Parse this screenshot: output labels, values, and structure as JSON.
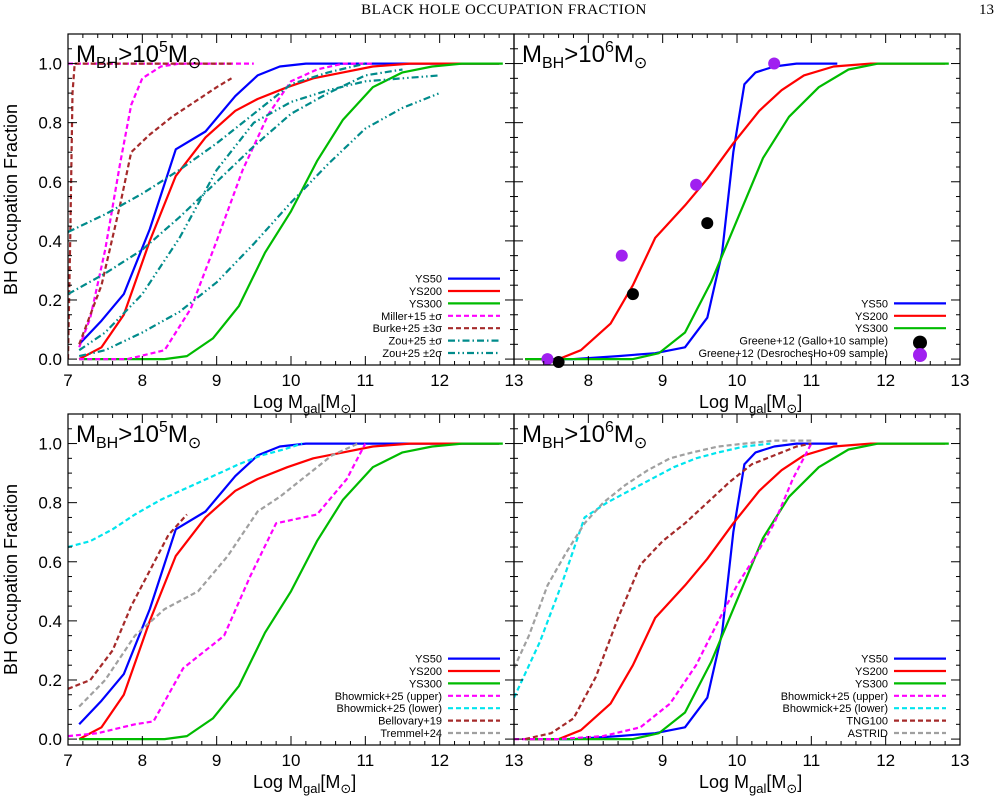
{
  "header": {
    "title": "BLACK HOLE OCCUPATION FRACTION",
    "page_number": "13"
  },
  "colors": {
    "ys50": "#0000ff",
    "ys200": "#ff0000",
    "ys300": "#00bb00",
    "magenta": "#ff00ff",
    "darkred": "#a52a2a",
    "teal": "#008b8b",
    "cyan": "#00e5ee",
    "gray": "#a0a0a0",
    "purple": "#a020f0",
    "black": "#000000"
  },
  "shared_axes": {
    "xlabel_main": "Log M",
    "xlabel_sub": "gal",
    "xlabel_unit": "[M",
    "xlabel_end": "]",
    "ylabel": "BH Occupation Fraction",
    "xlim": [
      7,
      13
    ],
    "ylim": [
      -0.02,
      1.1
    ],
    "xticks": [
      "7",
      "8",
      "9",
      "10",
      "11",
      "12",
      "13"
    ],
    "yticks": [
      "0.0",
      "0.2",
      "0.4",
      "0.6",
      "0.8",
      "1.0"
    ]
  },
  "chart_data": [
    {
      "type": "line",
      "panel_label": {
        "prefix": "M",
        "sub": "BH",
        "mid": ">10",
        "sup": "5",
        "unit": "M"
      },
      "series": [
        {
          "name": "YS50",
          "color": "ys50",
          "dash": "solid",
          "x": [
            7.15,
            7.45,
            7.75,
            8.1,
            8.45,
            8.85,
            9.25,
            9.55,
            9.85,
            10.2,
            10.6,
            11.0,
            11.5,
            12.2,
            12.8
          ],
          "y": [
            0.05,
            0.13,
            0.22,
            0.44,
            0.71,
            0.77,
            0.89,
            0.96,
            0.99,
            1.0,
            1.0,
            1.0,
            1.0,
            1.0,
            1.0
          ]
        },
        {
          "name": "YS200",
          "color": "ys200",
          "dash": "solid",
          "x": [
            7.15,
            7.45,
            7.75,
            8.1,
            8.45,
            8.85,
            9.25,
            9.55,
            9.95,
            10.3,
            10.7,
            11.1,
            11.6,
            12.2,
            12.8
          ],
          "y": [
            0.0,
            0.04,
            0.15,
            0.4,
            0.62,
            0.75,
            0.84,
            0.88,
            0.92,
            0.95,
            0.97,
            0.99,
            1.0,
            1.0,
            1.0
          ]
        },
        {
          "name": "YS300",
          "color": "ys300",
          "dash": "solid",
          "x": [
            7.15,
            7.8,
            8.3,
            8.6,
            8.95,
            9.3,
            9.65,
            10.0,
            10.35,
            10.7,
            11.1,
            11.5,
            11.9,
            12.3,
            12.85
          ],
          "y": [
            0.0,
            0.0,
            0.0,
            0.01,
            0.07,
            0.18,
            0.36,
            0.5,
            0.67,
            0.81,
            0.92,
            0.97,
            0.99,
            1.0,
            1.0
          ]
        },
        {
          "name": "Miller+15 ±σ",
          "color": "magenta",
          "dash": "short",
          "x": [
            7.0,
            7.7,
            8.0,
            8.3,
            8.6,
            8.9,
            9.2,
            9.5
          ],
          "y": [
            1.0,
            1.0,
            1.0,
            1.0,
            1.0,
            1.0,
            1.0,
            1.0
          ]
        },
        {
          "name": "",
          "color": "magenta",
          "dash": "short",
          "x": [
            7.15,
            7.3,
            7.5,
            7.7,
            7.85,
            8.0,
            8.25,
            8.5,
            9.0
          ],
          "y": [
            0.04,
            0.14,
            0.37,
            0.66,
            0.86,
            0.95,
            0.99,
            1.0,
            1.0
          ]
        },
        {
          "name": "",
          "color": "magenta",
          "dash": "short",
          "x": [
            7.15,
            7.8,
            8.3,
            8.65,
            9.0,
            9.35,
            9.7,
            10.0,
            10.35,
            10.7,
            11.1
          ],
          "y": [
            0.0,
            0.0,
            0.03,
            0.17,
            0.4,
            0.64,
            0.83,
            0.94,
            0.98,
            1.0,
            1.0
          ]
        },
        {
          "name": "Burke+25 ±3σ",
          "color": "darkred",
          "dash": "short",
          "x": [
            7.0,
            7.03,
            7.06,
            7.09
          ],
          "y": [
            0.0,
            0.4,
            0.9,
            1.0
          ]
        },
        {
          "name": "",
          "color": "darkred",
          "dash": "short",
          "x": [
            7.09,
            7.6,
            8.2,
            8.8,
            9.2
          ],
          "y": [
            1.0,
            1.0,
            1.0,
            1.0,
            1.0
          ]
        },
        {
          "name": "",
          "color": "darkred",
          "dash": "short",
          "x": [
            7.15,
            7.45,
            7.7,
            7.85,
            8.1,
            8.4,
            8.7,
            9.0,
            9.2
          ],
          "y": [
            0.05,
            0.25,
            0.52,
            0.7,
            0.76,
            0.82,
            0.87,
            0.92,
            0.95
          ]
        },
        {
          "name": "Zou+25 ±σ",
          "color": "teal",
          "dash": "dashdot",
          "x": [
            7.0,
            7.5,
            8.0,
            8.5,
            9.0,
            9.5,
            10.0,
            10.5,
            11.0
          ],
          "y": [
            0.43,
            0.49,
            0.56,
            0.64,
            0.73,
            0.83,
            0.93,
            0.97,
            1.0
          ]
        },
        {
          "name": "",
          "color": "teal",
          "dash": "dashdot",
          "x": [
            7.0,
            7.5,
            8.0,
            8.5,
            9.0,
            9.5,
            10.0,
            10.5,
            11.0,
            11.5
          ],
          "y": [
            0.22,
            0.29,
            0.37,
            0.48,
            0.6,
            0.72,
            0.83,
            0.9,
            0.96,
            0.98
          ]
        },
        {
          "name": "Zou+25 ±2σ",
          "color": "teal",
          "dash": "dashdotdot",
          "x": [
            7.15,
            7.5,
            8.0,
            8.5,
            9.0,
            9.5,
            10.0,
            10.5,
            11.0,
            11.5,
            12.0
          ],
          "y": [
            0.01,
            0.03,
            0.09,
            0.16,
            0.26,
            0.39,
            0.53,
            0.66,
            0.78,
            0.85,
            0.9
          ]
        },
        {
          "name": "",
          "color": "teal",
          "dash": "dashdotdot",
          "x": [
            7.15,
            7.5,
            8.0,
            8.5,
            9.0,
            9.5,
            10.0,
            10.5,
            11.0,
            11.5,
            12.0
          ],
          "y": [
            0.03,
            0.09,
            0.22,
            0.41,
            0.64,
            0.8,
            0.87,
            0.91,
            0.94,
            0.95,
            0.96
          ]
        }
      ]
    },
    {
      "type": "line",
      "panel_label": {
        "prefix": "M",
        "sub": "BH",
        "mid": ">10",
        "sup": "6",
        "unit": "M"
      },
      "series": [
        {
          "name": "YS50",
          "color": "ys50",
          "dash": "solid",
          "x": [
            7.15,
            7.8,
            8.4,
            8.9,
            9.3,
            9.6,
            9.8,
            9.95,
            10.1,
            10.25,
            10.5,
            10.8,
            11.1,
            11.35
          ],
          "y": [
            0.0,
            0.0,
            0.01,
            0.02,
            0.04,
            0.14,
            0.36,
            0.7,
            0.93,
            0.97,
            0.99,
            1.0,
            1.0,
            1.0
          ]
        },
        {
          "name": "YS200",
          "color": "ys200",
          "dash": "solid",
          "x": [
            7.15,
            7.6,
            7.9,
            8.3,
            8.6,
            8.9,
            9.3,
            9.6,
            9.95,
            10.3,
            10.6,
            10.9,
            11.3,
            11.8,
            12.3,
            12.8
          ],
          "y": [
            0.0,
            0.0,
            0.03,
            0.12,
            0.25,
            0.41,
            0.52,
            0.61,
            0.73,
            0.84,
            0.91,
            0.96,
            0.99,
            1.0,
            1.0,
            1.0
          ]
        },
        {
          "name": "YS300",
          "color": "ys300",
          "dash": "solid",
          "x": [
            7.15,
            8.0,
            8.6,
            8.95,
            9.3,
            9.65,
            10.0,
            10.35,
            10.7,
            11.1,
            11.5,
            11.9,
            12.3,
            12.85
          ],
          "y": [
            0.0,
            0.0,
            0.0,
            0.02,
            0.09,
            0.26,
            0.47,
            0.68,
            0.82,
            0.92,
            0.98,
            1.0,
            1.0,
            1.0
          ]
        }
      ],
      "points": [
        {
          "name": "Greene+12 (Gallo+10 sample)",
          "color": "black",
          "x": [
            7.6,
            8.6,
            9.6
          ],
          "y": [
            -0.01,
            0.22,
            0.46
          ]
        },
        {
          "name": "Greene+12 (DesrochesHo+09 sample)",
          "color": "purple",
          "x": [
            7.45,
            8.45,
            9.45,
            10.5
          ],
          "y": [
            0.0,
            0.35,
            0.59,
            1.0
          ]
        }
      ]
    },
    {
      "type": "line",
      "panel_label": {
        "prefix": "M",
        "sub": "BH",
        "mid": ">10",
        "sup": "5",
        "unit": "M"
      },
      "series": [
        {
          "name": "YS50",
          "color": "ys50",
          "dash": "solid",
          "x": [
            7.15,
            7.45,
            7.75,
            8.1,
            8.45,
            8.85,
            9.25,
            9.55,
            9.85,
            10.2,
            10.6,
            11.0,
            11.5,
            12.2,
            12.8
          ],
          "y": [
            0.05,
            0.13,
            0.22,
            0.44,
            0.71,
            0.77,
            0.89,
            0.96,
            0.99,
            1.0,
            1.0,
            1.0,
            1.0,
            1.0,
            1.0
          ]
        },
        {
          "name": "YS200",
          "color": "ys200",
          "dash": "solid",
          "x": [
            7.15,
            7.45,
            7.75,
            8.1,
            8.45,
            8.85,
            9.25,
            9.55,
            9.95,
            10.3,
            10.7,
            11.1,
            11.6,
            12.2,
            12.8
          ],
          "y": [
            0.0,
            0.04,
            0.15,
            0.4,
            0.62,
            0.75,
            0.84,
            0.88,
            0.92,
            0.95,
            0.97,
            0.99,
            1.0,
            1.0,
            1.0
          ]
        },
        {
          "name": "YS300",
          "color": "ys300",
          "dash": "solid",
          "x": [
            7.15,
            7.8,
            8.3,
            8.6,
            8.95,
            9.3,
            9.65,
            10.0,
            10.35,
            10.7,
            11.1,
            11.5,
            11.9,
            12.3,
            12.85
          ],
          "y": [
            0.0,
            0.0,
            0.0,
            0.01,
            0.07,
            0.18,
            0.36,
            0.5,
            0.67,
            0.81,
            0.92,
            0.97,
            0.99,
            1.0,
            1.0
          ]
        },
        {
          "name": "Bhowmick+25 (upper)",
          "color": "magenta",
          "dash": "short",
          "x": [
            7.0,
            7.4,
            7.9,
            8.15,
            8.55,
            9.1,
            9.45,
            9.8,
            10.35,
            10.75,
            11.0
          ],
          "y": [
            0.01,
            0.02,
            0.05,
            0.06,
            0.24,
            0.35,
            0.55,
            0.73,
            0.76,
            0.88,
            1.0
          ]
        },
        {
          "name": "Bhowmick+25 (lower)",
          "color": "cyan",
          "dash": "short",
          "x": [
            7.0,
            7.3,
            7.6,
            7.9,
            8.25,
            8.6,
            8.95,
            9.3,
            9.6,
            9.9,
            10.15
          ],
          "y": [
            0.65,
            0.67,
            0.71,
            0.76,
            0.81,
            0.85,
            0.89,
            0.93,
            0.96,
            0.98,
            1.0
          ]
        },
        {
          "name": "Bellovary+19",
          "color": "darkred",
          "dash": "short",
          "x": [
            7.0,
            7.3,
            7.6,
            7.85,
            8.1,
            8.35,
            8.6
          ],
          "y": [
            0.17,
            0.2,
            0.3,
            0.45,
            0.57,
            0.69,
            0.76
          ]
        },
        {
          "name": "Tremmel+24",
          "color": "gray",
          "dash": "short",
          "x": [
            7.15,
            7.5,
            7.9,
            8.3,
            8.75,
            9.15,
            9.55,
            9.85,
            10.2,
            10.55,
            10.9
          ],
          "y": [
            0.11,
            0.2,
            0.35,
            0.44,
            0.5,
            0.62,
            0.77,
            0.82,
            0.89,
            0.96,
            1.0
          ]
        }
      ]
    },
    {
      "type": "line",
      "panel_label": {
        "prefix": "M",
        "sub": "BH",
        "mid": ">10",
        "sup": "6",
        "unit": "M"
      },
      "series": [
        {
          "name": "YS50",
          "color": "ys50",
          "dash": "solid",
          "x": [
            7.15,
            7.8,
            8.4,
            8.9,
            9.3,
            9.6,
            9.8,
            9.95,
            10.1,
            10.25,
            10.5,
            10.8,
            11.1,
            11.35
          ],
          "y": [
            0.0,
            0.0,
            0.01,
            0.02,
            0.04,
            0.14,
            0.36,
            0.7,
            0.93,
            0.97,
            0.99,
            1.0,
            1.0,
            1.0
          ]
        },
        {
          "name": "YS200",
          "color": "ys200",
          "dash": "solid",
          "x": [
            7.15,
            7.6,
            7.9,
            8.3,
            8.6,
            8.9,
            9.3,
            9.6,
            9.95,
            10.3,
            10.6,
            10.9,
            11.3,
            11.8,
            12.3,
            12.8
          ],
          "y": [
            0.0,
            0.0,
            0.03,
            0.12,
            0.25,
            0.41,
            0.52,
            0.61,
            0.73,
            0.84,
            0.91,
            0.96,
            0.99,
            1.0,
            1.0,
            1.0
          ]
        },
        {
          "name": "YS300",
          "color": "ys300",
          "dash": "solid",
          "x": [
            7.15,
            8.0,
            8.6,
            8.95,
            9.3,
            9.65,
            10.0,
            10.35,
            10.7,
            11.1,
            11.5,
            11.9,
            12.3,
            12.85
          ],
          "y": [
            0.0,
            0.0,
            0.0,
            0.02,
            0.09,
            0.26,
            0.47,
            0.68,
            0.82,
            0.92,
            0.98,
            1.0,
            1.0,
            1.0
          ]
        },
        {
          "name": "Bhowmick+25 (upper)",
          "color": "magenta",
          "dash": "short",
          "x": [
            7.0,
            7.6,
            8.2,
            8.7,
            9.1,
            9.45,
            9.75,
            10.0,
            10.25,
            10.5,
            10.75,
            11.0
          ],
          "y": [
            0.0,
            0.0,
            0.01,
            0.04,
            0.12,
            0.25,
            0.4,
            0.52,
            0.62,
            0.73,
            0.88,
            1.0
          ]
        },
        {
          "name": "Bhowmick+25 (lower)",
          "color": "cyan",
          "dash": "short",
          "x": [
            7.0,
            7.35,
            7.65,
            7.95,
            8.25,
            8.55,
            8.85,
            9.15,
            9.45,
            9.75,
            10.1,
            10.45
          ],
          "y": [
            0.14,
            0.33,
            0.53,
            0.75,
            0.8,
            0.84,
            0.88,
            0.92,
            0.95,
            0.97,
            0.99,
            1.0
          ]
        },
        {
          "name": "TNG100",
          "color": "darkred",
          "dash": "short",
          "x": [
            7.15,
            7.5,
            7.8,
            8.1,
            8.4,
            8.7,
            9.0,
            9.3,
            9.6,
            9.9,
            10.2,
            10.5,
            10.8,
            11.0
          ],
          "y": [
            0.0,
            0.02,
            0.07,
            0.21,
            0.41,
            0.59,
            0.67,
            0.73,
            0.8,
            0.87,
            0.93,
            0.96,
            0.99,
            1.0
          ]
        },
        {
          "name": "ASTRID",
          "color": "gray",
          "dash": "short",
          "x": [
            7.0,
            7.2,
            7.45,
            7.7,
            7.95,
            8.2,
            8.5,
            8.8,
            9.1,
            9.4,
            9.75,
            10.1,
            10.5,
            11.0
          ],
          "y": [
            0.24,
            0.35,
            0.52,
            0.63,
            0.73,
            0.8,
            0.86,
            0.91,
            0.95,
            0.97,
            0.99,
            1.0,
            1.01,
            1.01
          ]
        }
      ]
    }
  ]
}
